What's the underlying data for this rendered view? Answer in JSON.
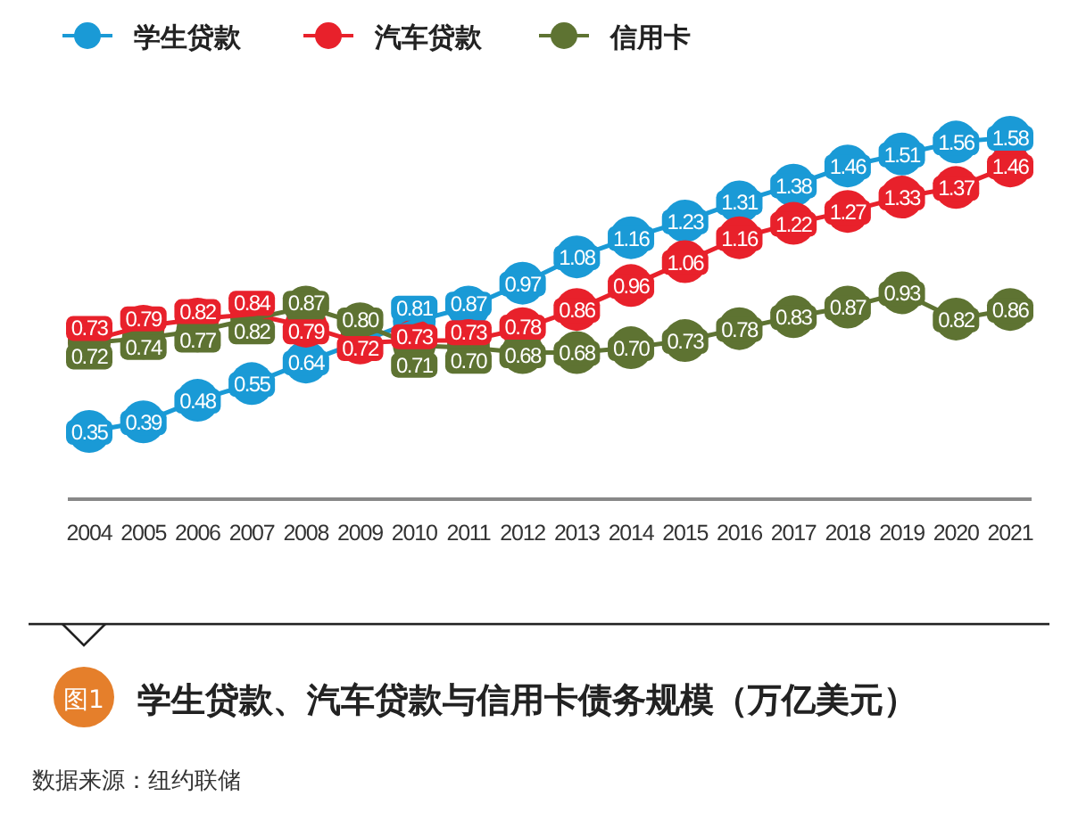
{
  "chart_data": {
    "type": "line",
    "title": "学生贷款、汽车贷款与信用卡债务规模（万亿美元）",
    "annotations": [
      "图1",
      "数据来源：纽约联储"
    ],
    "categories": [
      "2004",
      "2005",
      "2006",
      "2007",
      "2008",
      "2009",
      "2010",
      "2011",
      "2012",
      "2013",
      "2014",
      "2015",
      "2016",
      "2017",
      "2018",
      "2019",
      "2020",
      "2021"
    ],
    "series": [
      {
        "name": "学生贷款",
        "color": "#1a9ad6",
        "values": [
          0.35,
          0.39,
          0.48,
          0.55,
          0.64,
          null,
          0.81,
          0.87,
          0.97,
          1.08,
          1.16,
          1.23,
          1.31,
          1.38,
          1.46,
          1.51,
          1.56,
          1.58
        ],
        "value_labels": [
          "0.35",
          "0.39",
          "0.48",
          "0.55",
          "0.64",
          null,
          "0.81",
          "0.87",
          "0.97",
          "1.08",
          "1.16",
          "1.23",
          "1.31",
          "1.38",
          "1.46",
          "1.51",
          "1.56",
          "1.58"
        ]
      },
      {
        "name": "汽车贷款",
        "color": "#e8212b",
        "values": [
          0.73,
          0.79,
          0.82,
          0.84,
          0.79,
          0.72,
          0.73,
          0.73,
          0.78,
          0.86,
          0.96,
          1.06,
          1.16,
          1.22,
          1.27,
          1.33,
          1.37,
          1.46
        ],
        "value_labels": [
          "0.73",
          "0.79",
          "0.82",
          "0.84",
          "0.79",
          "0.72",
          "0.73",
          "0.73",
          "0.78",
          "0.86",
          "0.96",
          "1.06",
          "1.16",
          "1.22",
          "1.27",
          "1.33",
          "1.37",
          "1.46"
        ]
      },
      {
        "name": "信用卡",
        "color": "#5e7332",
        "values": [
          0.72,
          0.74,
          0.77,
          0.82,
          0.87,
          0.8,
          0.71,
          0.7,
          0.68,
          0.68,
          0.7,
          0.73,
          0.78,
          0.83,
          0.87,
          0.93,
          0.82,
          0.86
        ],
        "value_labels": [
          "0.72",
          "0.74",
          "0.77",
          "0.82",
          "0.87",
          "0.80",
          "0.71",
          "0.70",
          "0.68",
          "0.68",
          "0.70",
          "0.73",
          "0.78",
          "0.83",
          "0.87",
          "0.93",
          "0.82",
          "0.86"
        ]
      }
    ],
    "legend": "top left",
    "marker": "circle",
    "line_style": "solid"
  }
}
